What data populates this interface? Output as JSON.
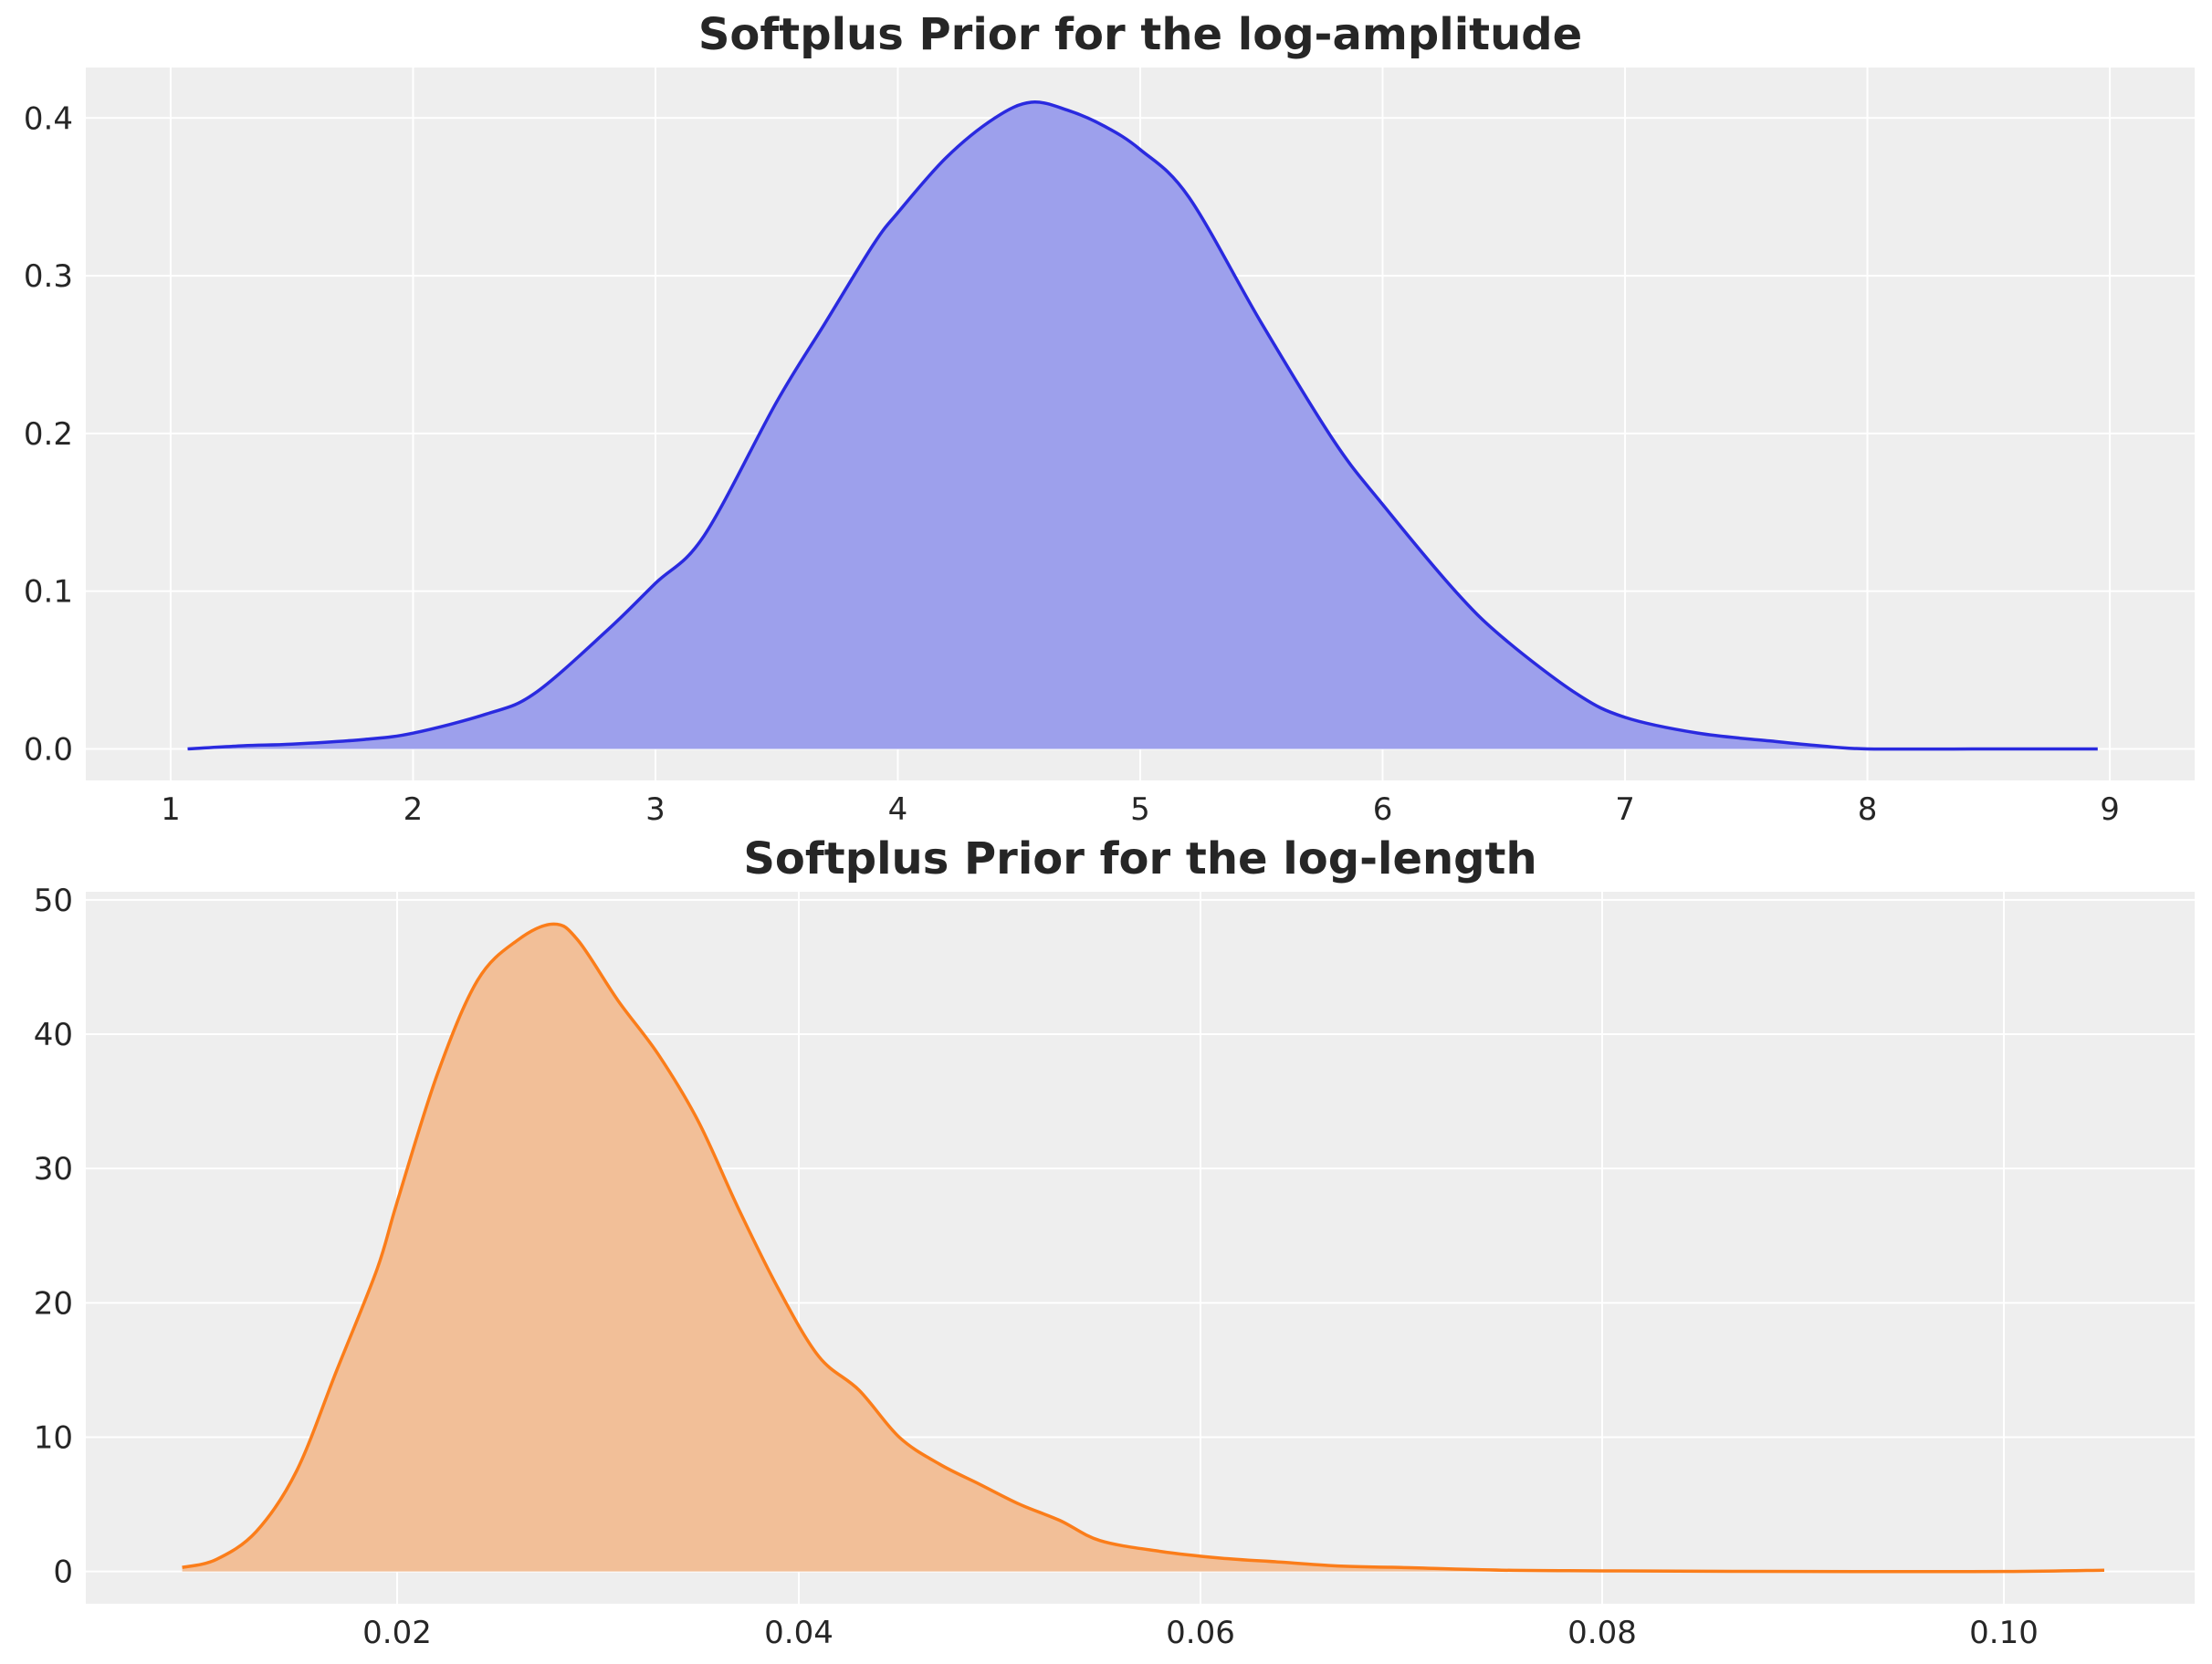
{
  "chart_data": [
    {
      "type": "area",
      "title": "Softplus Prior for the log-amplitude",
      "xlabel": "",
      "ylabel": "",
      "xlim": [
        0.65,
        9.35
      ],
      "ylim": [
        -0.02,
        0.432
      ],
      "xticks": [
        1,
        2,
        3,
        4,
        5,
        6,
        7,
        8,
        9
      ],
      "xtick_labels": [
        "1",
        "2",
        "3",
        "4",
        "5",
        "6",
        "7",
        "8",
        "9"
      ],
      "yticks": [
        0.0,
        0.1,
        0.2,
        0.3,
        0.4
      ],
      "ytick_labels": [
        "0.0",
        "0.1",
        "0.2",
        "0.3",
        "0.4"
      ],
      "grid": true,
      "color": "#2a2adf",
      "fill_color": "#9da0ec",
      "series": [
        {
          "x": [
            1.07,
            1.3,
            1.5,
            1.8,
            2.0,
            2.3,
            2.5,
            2.8,
            3.0,
            3.2,
            3.5,
            3.7,
            3.9,
            4.0,
            4.2,
            4.4,
            4.55,
            4.7,
            4.85,
            5.0,
            5.2,
            5.5,
            5.8,
            6.0,
            6.3,
            6.5,
            6.8,
            7.0,
            7.3,
            7.6,
            7.8,
            8.0,
            8.5,
            8.95
          ],
          "y": [
            0.0,
            0.002,
            0.003,
            0.006,
            0.01,
            0.022,
            0.035,
            0.075,
            0.105,
            0.135,
            0.22,
            0.27,
            0.32,
            0.34,
            0.375,
            0.4,
            0.41,
            0.405,
            0.395,
            0.38,
            0.35,
            0.27,
            0.195,
            0.155,
            0.1,
            0.07,
            0.035,
            0.02,
            0.01,
            0.005,
            0.002,
            0.0,
            0.0,
            0.0
          ]
        }
      ]
    },
    {
      "type": "area",
      "title": "Softplus Prior for the log-length",
      "xlabel": "",
      "ylabel": "",
      "xlim": [
        0.0045,
        0.1095
      ],
      "ylim": [
        -2.4,
        50.6
      ],
      "xticks": [
        0.02,
        0.04,
        0.06,
        0.08,
        0.1
      ],
      "xtick_labels": [
        "0.02",
        "0.04",
        "0.06",
        "0.08",
        "0.10"
      ],
      "yticks": [
        0,
        10,
        20,
        30,
        40,
        50
      ],
      "ytick_labels": [
        "0",
        "10",
        "20",
        "30",
        "40",
        "50"
      ],
      "grid": true,
      "color": "#fb7d1a",
      "fill_color": "#f2bf98",
      "series": [
        {
          "x": [
            0.0093,
            0.011,
            0.013,
            0.015,
            0.017,
            0.019,
            0.02,
            0.022,
            0.024,
            0.026,
            0.0278,
            0.029,
            0.031,
            0.033,
            0.035,
            0.037,
            0.039,
            0.041,
            0.043,
            0.045,
            0.047,
            0.049,
            0.051,
            0.053,
            0.055,
            0.058,
            0.061,
            0.064,
            0.067,
            0.07,
            0.075,
            0.08,
            0.09,
            0.1,
            0.105
          ],
          "y": [
            0.3,
            0.9,
            3.0,
            7.5,
            15.0,
            22.5,
            27.5,
            37.0,
            44.0,
            47.0,
            48.2,
            47.0,
            42.5,
            38.5,
            33.5,
            27.0,
            21.0,
            16.0,
            13.5,
            10.0,
            8.0,
            6.5,
            5.0,
            3.8,
            2.3,
            1.5,
            1.0,
            0.7,
            0.4,
            0.3,
            0.1,
            0.05,
            0.0,
            0.0,
            0.1
          ]
        }
      ]
    }
  ]
}
